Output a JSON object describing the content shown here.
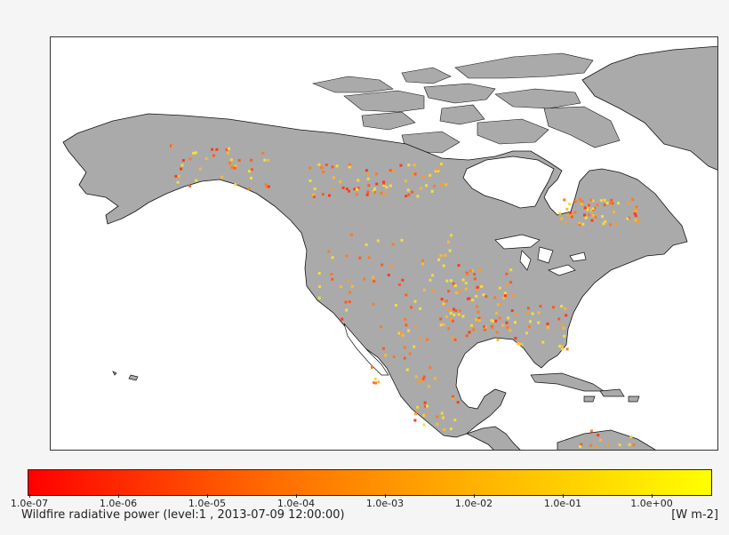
{
  "map": {
    "land_color": "#aaaaaa",
    "ocean_color": "#ffffff",
    "coast_color": "#111111",
    "fire_points_color_low": "#ff0000",
    "fire_points_color_high": "#ffff00"
  },
  "colorbar": {
    "ticks": [
      "1.0e-07",
      "1.0e-06",
      "1.0e-05",
      "1.0e-04",
      "1.0e-03",
      "1.0e-02",
      "1.0e-01",
      "1.0e+00"
    ],
    "units": "[W m-2]"
  },
  "caption": "Wildfire radiative power (level:1 , 2013-07-09 12:00:00)"
}
